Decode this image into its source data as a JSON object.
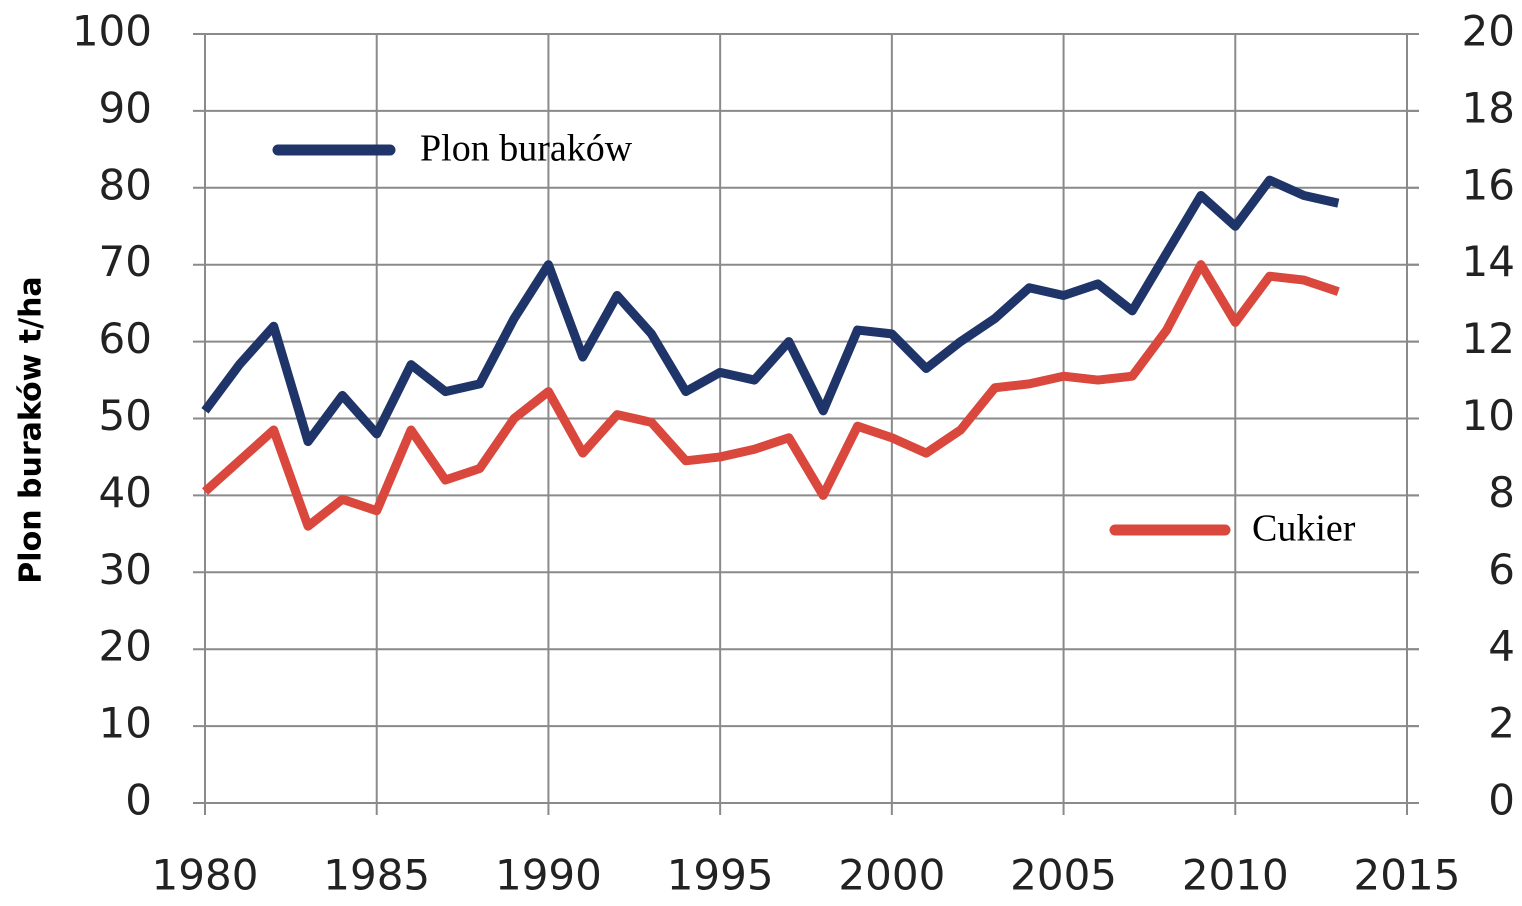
{
  "chart_data": {
    "type": "line",
    "y_label": "Plon buraków t/ha",
    "x": [
      1980,
      1981,
      1982,
      1983,
      1984,
      1985,
      1986,
      1987,
      1988,
      1989,
      1990,
      1991,
      1992,
      1993,
      1994,
      1995,
      1996,
      1997,
      1998,
      1999,
      2000,
      2001,
      2002,
      2003,
      2004,
      2005,
      2006,
      2007,
      2008,
      2009,
      2010,
      2011,
      2012,
      2013
    ],
    "series": [
      {
        "name": "Plon buraków",
        "color": "#1f3468",
        "axis": "y",
        "values": [
          51,
          57,
          62,
          47,
          53,
          48,
          57,
          53.5,
          54.5,
          63,
          70,
          58,
          66,
          61,
          53.5,
          56,
          55,
          60,
          51,
          61.5,
          61,
          56.5,
          60,
          63,
          67,
          66,
          67.5,
          64,
          71.5,
          79,
          75,
          81,
          79,
          78
        ]
      },
      {
        "name": "Cukier",
        "color": "#d9473d",
        "axis": "y2",
        "values": [
          8.1,
          8.9,
          9.7,
          7.2,
          7.9,
          7.6,
          9.7,
          8.4,
          8.7,
          10,
          10.7,
          9.1,
          10.1,
          9.9,
          8.9,
          9,
          9.2,
          9.5,
          8,
          9.8,
          9.5,
          9.1,
          9.7,
          10.8,
          10.9,
          11.1,
          11,
          11.1,
          12.3,
          14,
          12.5,
          13.7,
          13.6,
          13.3
        ]
      }
    ],
    "xlim": [
      1980,
      2015
    ],
    "xticks": [
      1980,
      1985,
      1990,
      1995,
      2000,
      2005,
      2010,
      2015
    ],
    "ylim": [
      0,
      100
    ],
    "yticks": [
      0,
      10,
      20,
      30,
      40,
      50,
      60,
      70,
      80,
      90,
      100
    ],
    "y2lim": [
      0,
      20
    ],
    "y2ticks": [
      0,
      2,
      4,
      6,
      8,
      10,
      12,
      14,
      16,
      18,
      20
    ],
    "grid": true
  }
}
